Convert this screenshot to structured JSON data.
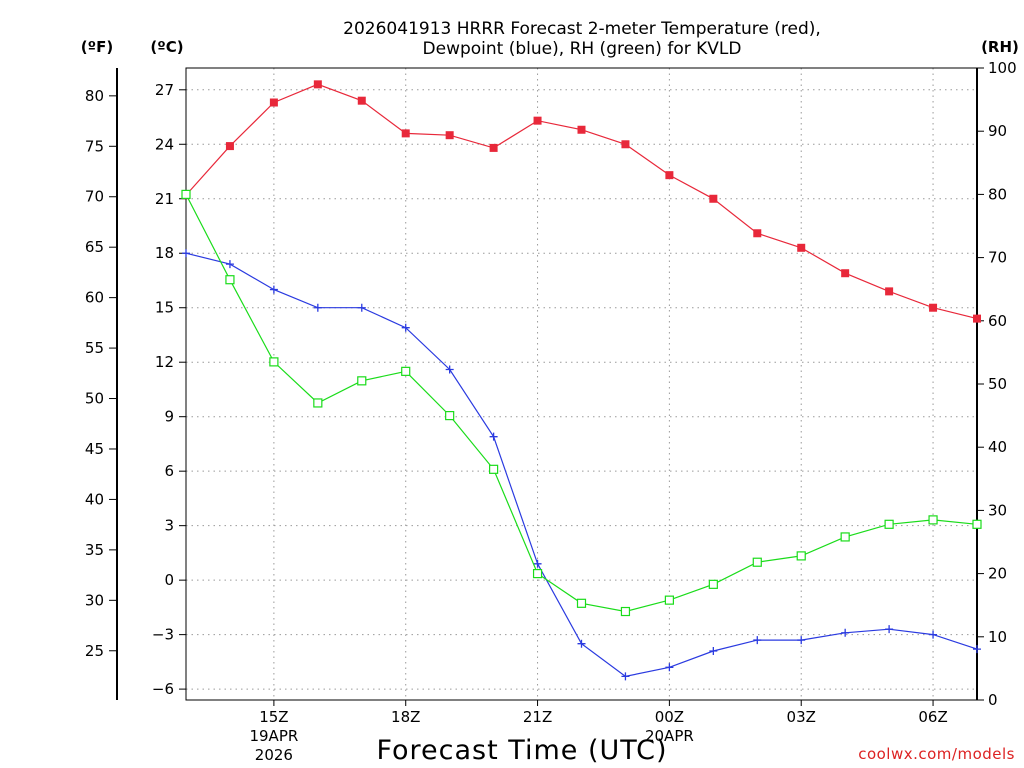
{
  "chart_data": {
    "type": "line",
    "title_line1": "2026041913 HRRR Forecast 2-meter Temperature (red),",
    "title_line2": "Dewpoint (blue), RH (green) for KVLD",
    "xlabel": "Forecast Time (UTC)",
    "credit": "coolwx.com/models",
    "units": {
      "fahrenheit": "(ºF)",
      "celsius": "(ºC)",
      "rh": "(RH)"
    },
    "x_hours_utc": [
      13,
      14,
      15,
      16,
      17,
      18,
      19,
      20,
      21,
      22,
      23,
      24,
      25,
      26,
      27,
      28,
      29,
      30,
      31
    ],
    "x_ticks": [
      {
        "hour": 15,
        "label": "15Z",
        "sub1": "19APR",
        "sub2": "2026"
      },
      {
        "hour": 18,
        "label": "18Z"
      },
      {
        "hour": 21,
        "label": "21Z"
      },
      {
        "hour": 24,
        "label": "00Z",
        "sub1": "20APR"
      },
      {
        "hour": 27,
        "label": "03Z"
      },
      {
        "hour": 30,
        "label": "06Z"
      }
    ],
    "xlim": [
      13,
      31
    ],
    "celsius_axis": {
      "ylim": [
        -6.6,
        28.2
      ],
      "ticks": [
        27,
        24,
        21,
        18,
        15,
        12,
        9,
        6,
        3,
        0,
        -3,
        -6
      ]
    },
    "fahrenheit_axis": {
      "ticks": [
        80,
        75,
        70,
        65,
        60,
        55,
        50,
        45,
        40,
        35,
        30,
        25
      ]
    },
    "rh_axis": {
      "ylim": [
        0,
        100
      ],
      "ticks": [
        100,
        90,
        80,
        70,
        60,
        50,
        40,
        30,
        20,
        10,
        0
      ]
    },
    "colors": {
      "temperature": "#e8283a",
      "dewpoint": "#2a3ae0",
      "rh": "#1adc1a"
    },
    "series": [
      {
        "name": "Temperature",
        "unit": "C",
        "marker": "filled-square",
        "values": [
          21.2,
          23.9,
          26.3,
          27.3,
          26.4,
          24.6,
          24.5,
          23.8,
          25.3,
          24.8,
          24.0,
          22.3,
          21.0,
          19.1,
          18.3,
          16.9,
          15.9,
          15.0,
          14.4
        ]
      },
      {
        "name": "Dewpoint",
        "unit": "C",
        "marker": "plus",
        "values": [
          18.0,
          17.4,
          16.0,
          15.0,
          15.0,
          13.9,
          11.6,
          7.9,
          0.9,
          -3.5,
          -5.3,
          -4.8,
          -3.9,
          -3.3,
          -3.3,
          -2.9,
          -2.7,
          -3.0,
          -3.8
        ]
      },
      {
        "name": "RH",
        "unit": "%",
        "marker": "open-square",
        "values": [
          80,
          66.5,
          53.5,
          47,
          50.5,
          52,
          45,
          36.5,
          20,
          15.3,
          14,
          15.8,
          18.3,
          21.8,
          22.8,
          25.8,
          27.8,
          28.5,
          27.8
        ]
      }
    ]
  }
}
